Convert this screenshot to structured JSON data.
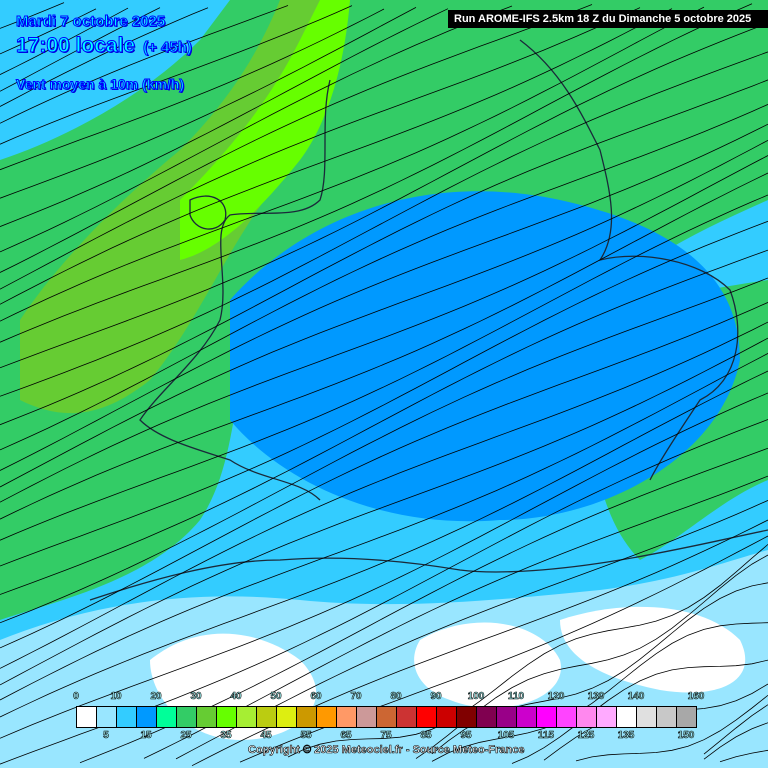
{
  "header": {
    "date": "Mardi 7 octobre 2025",
    "time": "17:00 locale",
    "lead": "(+ 45h)",
    "variable": "Vent moyen à 10m (km/h)"
  },
  "run_label": "Run AROME-IFS 2.5km 18 Z du Dimanche 5 octobre 2025",
  "copyright": "Copyright © 2025 Meteociel.fr - Source Meteo-France",
  "legend": {
    "top_labels": [
      "0",
      "10",
      "20",
      "30",
      "40",
      "50",
      "60",
      "70",
      "80",
      "90",
      "100",
      "110",
      "120",
      "130",
      "140",
      "160"
    ],
    "bottom_labels": [
      "5",
      "15",
      "25",
      "35",
      "45",
      "55",
      "65",
      "75",
      "85",
      "95",
      "105",
      "115",
      "125",
      "135",
      "150"
    ],
    "colors": [
      "#ffffff",
      "#99e6ff",
      "#33ccff",
      "#0099ff",
      "#00ff99",
      "#33cc66",
      "#66cc33",
      "#66ff00",
      "#a6ee33",
      "#bbcc11",
      "#ddee11",
      "#cc9900",
      "#ff9900",
      "#ff9966",
      "#cc9999",
      "#cc6633",
      "#cc3333",
      "#ff0000",
      "#cc0000",
      "#800000",
      "#800050",
      "#990088",
      "#cc00cc",
      "#ff00ff",
      "#ff44ff",
      "#ff88ee",
      "#ffaaff",
      "#ffffff",
      "#e0e0e0",
      "#c8c8c8",
      "#a8a8a8"
    ]
  },
  "map": {
    "field_colors": {
      "calm": "#ffffff",
      "light": "#99e6ff",
      "base": "#33ccff",
      "moderate": "#0099ff",
      "fresh": "#33cc66",
      "strong": "#66cc33",
      "stronger": "#66ff00"
    }
  }
}
